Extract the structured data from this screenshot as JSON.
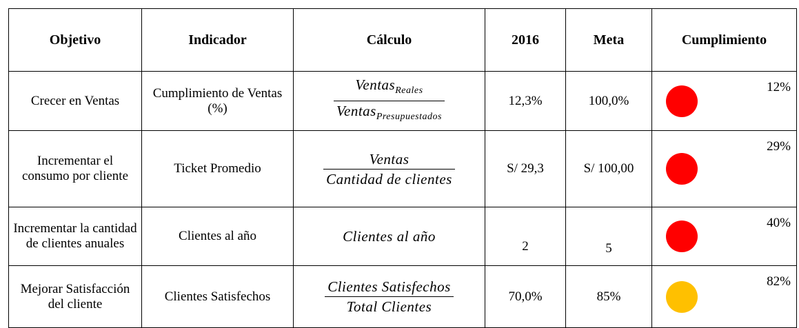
{
  "table": {
    "header": [
      "Objetivo",
      "Indicador",
      "Cálculo",
      "2016",
      "Meta",
      "Cumplimiento"
    ],
    "rows": [
      {
        "objetivo": "Crecer en Ventas",
        "indicador": "Cumplimiento de Ventas (%)",
        "calculo": {
          "numerator": "Ventas",
          "numerator_sub": "Reales",
          "denominator": "Ventas",
          "denominator_sub": "Presupuestados"
        },
        "year": "12,3%",
        "meta": "100,0%",
        "cumplimiento": "12%",
        "color": "#ff0000"
      },
      {
        "objetivo": "Incrementar el consumo por cliente",
        "indicador": "Ticket Promedio",
        "calculo": {
          "numerator": "Ventas",
          "denominator": "Cantidad de clientes"
        },
        "year": "S/ 29,3",
        "meta": "S/ 100,00",
        "cumplimiento": "29%",
        "color": "#ff0000"
      },
      {
        "objetivo": "Incrementar la cantidad de clientes anuales",
        "indicador": "Clientes al año",
        "calculo": {
          "text": "Clientes al año"
        },
        "year": "2",
        "meta": "5",
        "cumplimiento": "40%",
        "color": "#ff0000"
      },
      {
        "objetivo": "Mejorar Satisfacción del cliente",
        "indicador": "Clientes Satisfechos",
        "calculo": {
          "numerator": "Clientes Satisfechos",
          "denominator": "Total Clientes"
        },
        "year": "70,0%",
        "meta": "85%",
        "cumplimiento": "82%",
        "color": "#ffc000"
      }
    ]
  }
}
